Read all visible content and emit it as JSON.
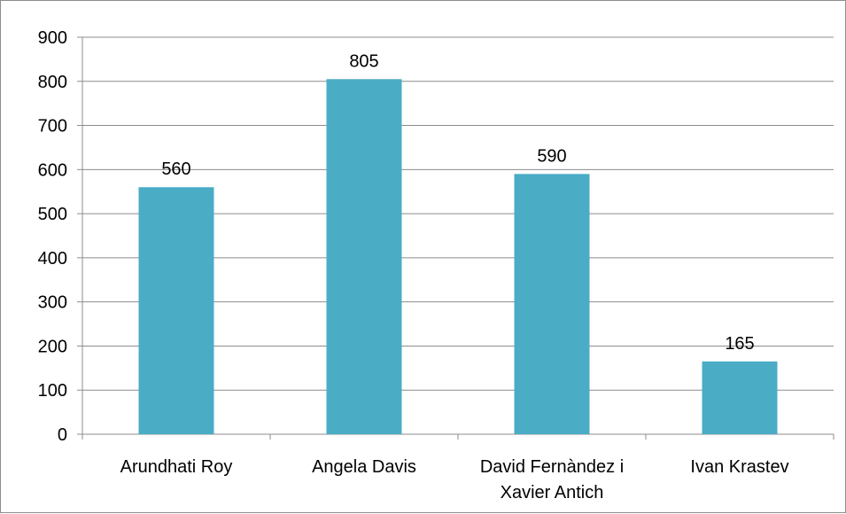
{
  "chart_data": {
    "type": "bar",
    "categories": [
      [
        "Arundhati Roy"
      ],
      [
        "Angela Davis"
      ],
      [
        "David Fernàndez i",
        "Xavier Antich"
      ],
      [
        "Ivan Krastev"
      ]
    ],
    "values": [
      560,
      805,
      590,
      165
    ],
    "ylim": [
      0,
      900
    ],
    "yticks": [
      0,
      100,
      200,
      300,
      400,
      500,
      600,
      700,
      800,
      900
    ],
    "grid": true,
    "legend": "none",
    "bar_color": "#4bacc6",
    "grid_color": "#8c8c8c",
    "axis_color": "#8c8c8c",
    "title": "",
    "xlabel": "",
    "ylabel": ""
  }
}
